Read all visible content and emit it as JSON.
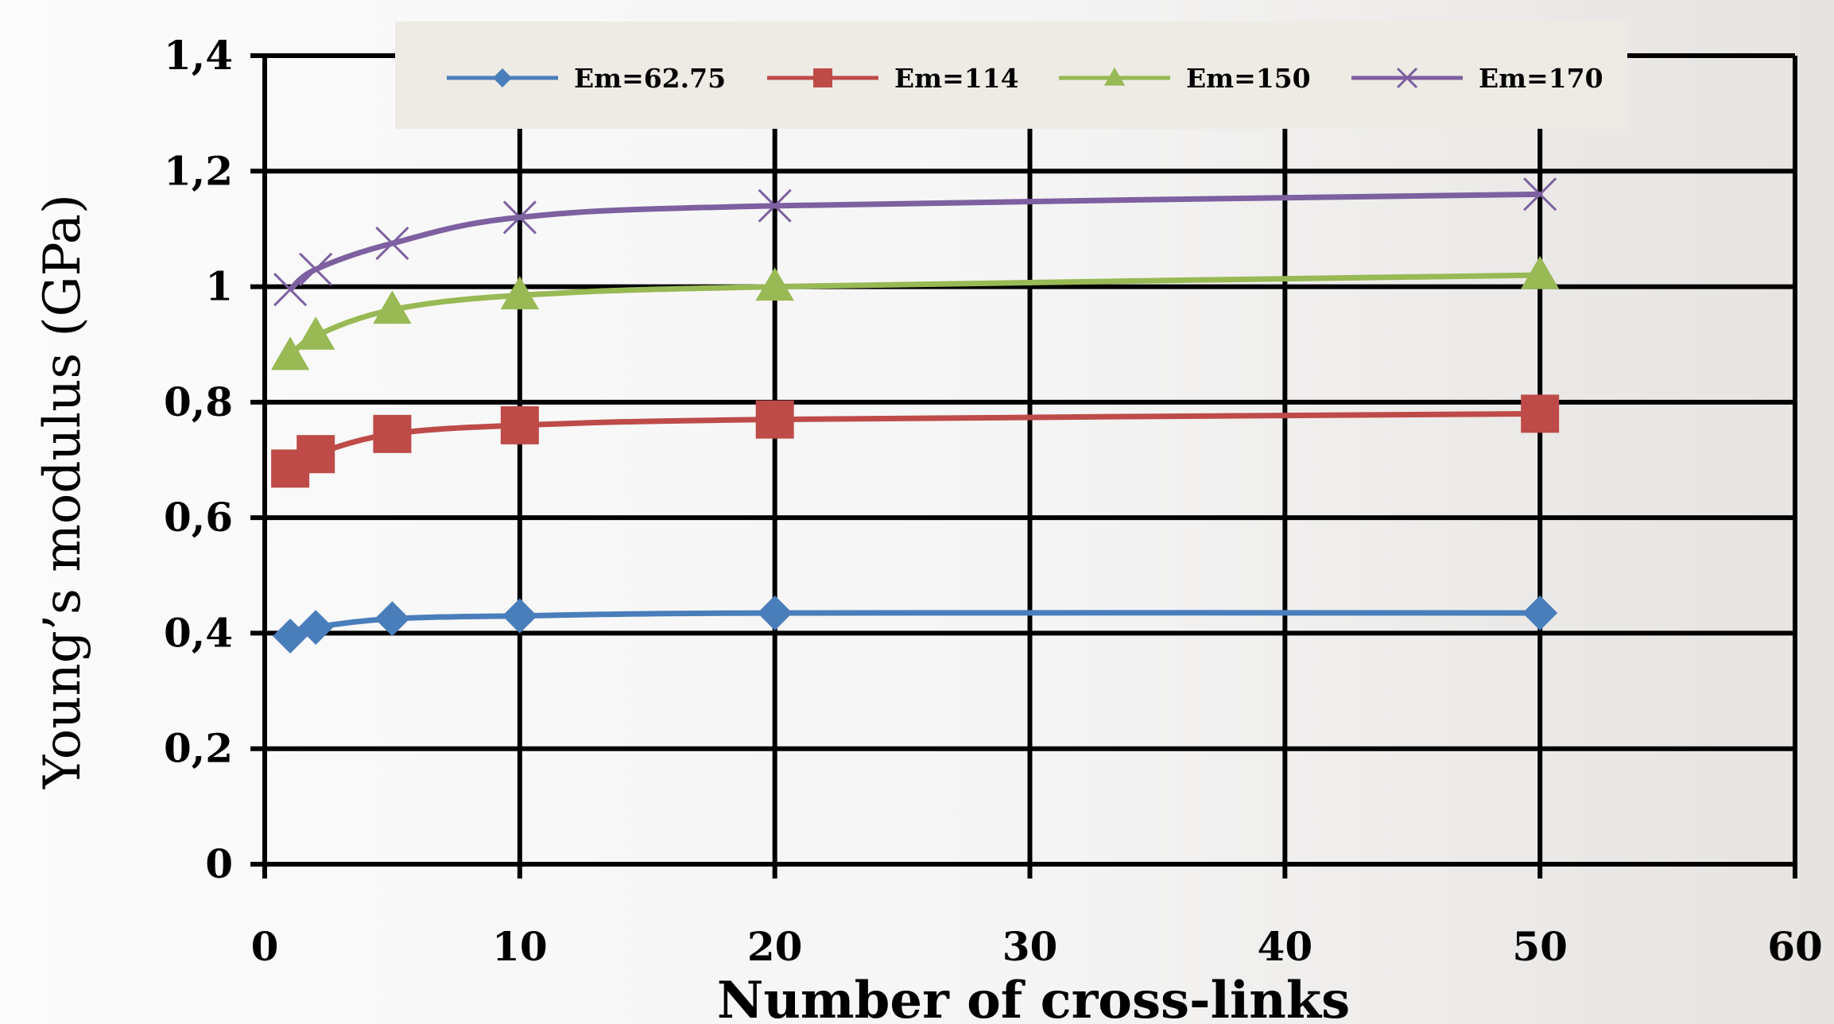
{
  "chart_data": {
    "type": "line",
    "title": "",
    "xlabel": "Number of cross-links",
    "ylabel": "Young’s modulus (GPa)",
    "xlim": [
      0,
      60
    ],
    "ylim": [
      0,
      1.4
    ],
    "x_ticks": [
      0,
      10,
      20,
      30,
      40,
      50,
      60
    ],
    "y_ticks": [
      0,
      0.2,
      0.4,
      0.6,
      0.8,
      1.0,
      1.2,
      1.4
    ],
    "x_tick_labels": [
      "0",
      "10",
      "20",
      "30",
      "40",
      "50",
      "60"
    ],
    "y_tick_labels": [
      "0",
      "0,2",
      "0,4",
      "0,6",
      "0,8",
      "1",
      "1,2",
      "1,4"
    ],
    "grid": true,
    "legend_position": "top",
    "series": [
      {
        "name": "Em=62.75",
        "color": "#4a7ebb",
        "marker": "diamond",
        "x": [
          1,
          2,
          5,
          10,
          20,
          50
        ],
        "y": [
          0.395,
          0.41,
          0.425,
          0.43,
          0.435,
          0.435
        ]
      },
      {
        "name": "Em=114",
        "color": "#be4b48",
        "marker": "square",
        "x": [
          1,
          2,
          5,
          10,
          20,
          50
        ],
        "y": [
          0.685,
          0.71,
          0.745,
          0.76,
          0.77,
          0.78
        ]
      },
      {
        "name": "Em=150",
        "color": "#98b954",
        "marker": "triangle",
        "x": [
          1,
          2,
          5,
          10,
          20,
          50
        ],
        "y": [
          0.88,
          0.915,
          0.96,
          0.985,
          1.0,
          1.02
        ]
      },
      {
        "name": "Em=170",
        "color": "#7d60a0",
        "marker": "x",
        "x": [
          1,
          2,
          5,
          10,
          20,
          50
        ],
        "y": [
          0.995,
          1.03,
          1.075,
          1.12,
          1.14,
          1.16
        ]
      }
    ]
  }
}
